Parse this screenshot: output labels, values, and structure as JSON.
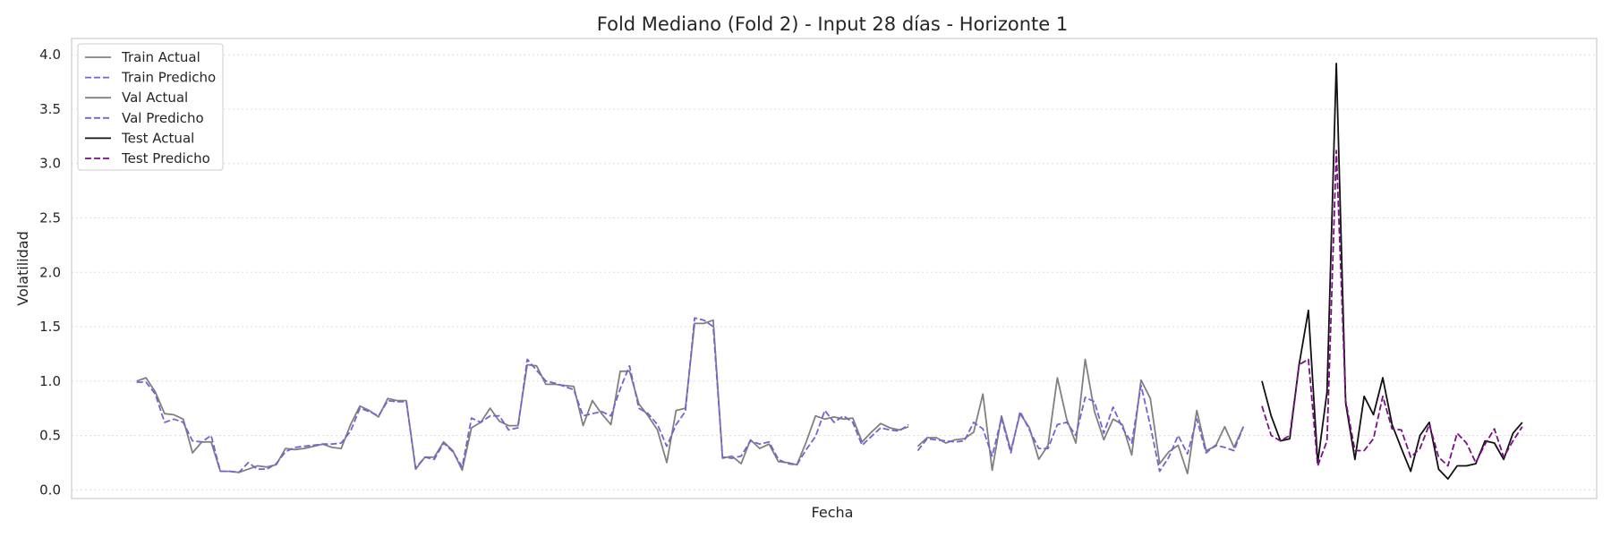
{
  "chart_data": {
    "type": "line",
    "title": "Fold Mediano (Fold 2) - Input 28 días - Horizonte 1",
    "xlabel": "Fecha",
    "ylabel": "Volatilidad",
    "ylim": [
      -0.08,
      4.15
    ],
    "yticks": [
      0.0,
      0.5,
      1.0,
      1.5,
      2.0,
      2.5,
      3.0,
      3.5,
      4.0
    ],
    "ytick_labels": [
      "0.0",
      "0.5",
      "1.0",
      "1.5",
      "2.0",
      "2.5",
      "3.0",
      "3.5",
      "4.0"
    ],
    "x_range": [
      0,
      164
    ],
    "grid": "y",
    "legend_position": "top-left",
    "series": [
      {
        "name": "Train Actual",
        "color": "#808080",
        "dash": "solid",
        "x_start": 7,
        "values": [
          1.0,
          1.03,
          0.9,
          0.7,
          0.69,
          0.65,
          0.34,
          0.44,
          0.44,
          0.17,
          0.17,
          0.16,
          0.19,
          0.22,
          0.21,
          0.23,
          0.38,
          0.37,
          0.38,
          0.4,
          0.42,
          0.39,
          0.38,
          0.6,
          0.77,
          0.73,
          0.67,
          0.84,
          0.82,
          0.82,
          0.19,
          0.3,
          0.3,
          0.44,
          0.36,
          0.18,
          0.57,
          0.62,
          0.75,
          0.63,
          0.59,
          0.59,
          1.15,
          1.14,
          0.97,
          0.97,
          0.96,
          0.95,
          0.59,
          0.82,
          0.7,
          0.6,
          1.09,
          1.09,
          0.79,
          0.68,
          0.55,
          0.25,
          0.73,
          0.75,
          1.53,
          1.53,
          1.56,
          0.29,
          0.31,
          0.24,
          0.46,
          0.38,
          0.42,
          0.26,
          0.25,
          0.23,
          0.44,
          0.68,
          0.65,
          0.67,
          0.65,
          0.66,
          0.44,
          0.53,
          0.61,
          0.57,
          0.55,
          0.58
        ]
      },
      {
        "name": "Train Predicho",
        "color": "#7a5fd6",
        "dash": "dashed",
        "x_start": 7,
        "values": [
          0.99,
          0.99,
          0.88,
          0.62,
          0.65,
          0.62,
          0.45,
          0.44,
          0.5,
          0.17,
          0.17,
          0.16,
          0.25,
          0.19,
          0.19,
          0.24,
          0.35,
          0.39,
          0.4,
          0.41,
          0.42,
          0.42,
          0.43,
          0.54,
          0.75,
          0.72,
          0.68,
          0.82,
          0.81,
          0.81,
          0.2,
          0.3,
          0.28,
          0.43,
          0.35,
          0.21,
          0.66,
          0.62,
          0.68,
          0.68,
          0.55,
          0.57,
          1.2,
          1.1,
          1.0,
          0.98,
          0.95,
          0.92,
          0.68,
          0.7,
          0.72,
          0.68,
          0.93,
          1.14,
          0.75,
          0.7,
          0.6,
          0.4,
          0.6,
          0.72,
          1.58,
          1.56,
          1.5,
          0.3,
          0.29,
          0.31,
          0.45,
          0.42,
          0.44,
          0.28,
          0.24,
          0.23,
          0.37,
          0.49,
          0.73,
          0.62,
          0.68,
          0.62,
          0.41,
          0.49,
          0.57,
          0.55,
          0.54,
          0.6
        ]
      },
      {
        "name": "Val Actual",
        "color": "#808080",
        "dash": "solid",
        "x_start": 91,
        "values": [
          0.4,
          0.48,
          0.48,
          0.43,
          0.46,
          0.47,
          0.53,
          0.88,
          0.18,
          0.68,
          0.36,
          0.7,
          0.57,
          0.28,
          0.41,
          1.03,
          0.65,
          0.43,
          1.2,
          0.72,
          0.46,
          0.65,
          0.6,
          0.32,
          1.01,
          0.84,
          0.24,
          0.35,
          0.41,
          0.15,
          0.73,
          0.36,
          0.4,
          0.58,
          0.39,
          0.58
        ]
      },
      {
        "name": "Val Predicho",
        "color": "#7a5fd6",
        "dash": "dashed",
        "x_start": 91,
        "values": [
          0.36,
          0.47,
          0.46,
          0.45,
          0.44,
          0.45,
          0.62,
          0.56,
          0.31,
          0.66,
          0.34,
          0.72,
          0.55,
          0.38,
          0.38,
          0.6,
          0.62,
          0.5,
          0.85,
          0.81,
          0.52,
          0.76,
          0.57,
          0.43,
          0.96,
          0.59,
          0.17,
          0.3,
          0.5,
          0.33,
          0.65,
          0.34,
          0.41,
          0.39,
          0.36,
          0.58
        ]
      },
      {
        "name": "Test Actual",
        "color": "#111111",
        "dash": "solid",
        "x_start": 128,
        "values": [
          1.0,
          0.68,
          0.45,
          0.47,
          1.15,
          1.65,
          0.25,
          0.9,
          3.92,
          0.8,
          0.28,
          0.86,
          0.69,
          1.03,
          0.6,
          0.38,
          0.17,
          0.5,
          0.62,
          0.19,
          0.1,
          0.22,
          0.22,
          0.24,
          0.45,
          0.43,
          0.28,
          0.52,
          0.62
        ]
      },
      {
        "name": "Test Predicho",
        "color": "#7a0f86",
        "dash": "dashed",
        "x_start": 128,
        "values": [
          0.77,
          0.5,
          0.45,
          0.5,
          1.15,
          1.2,
          0.22,
          0.45,
          3.12,
          0.82,
          0.36,
          0.36,
          0.47,
          0.86,
          0.56,
          0.55,
          0.3,
          0.38,
          0.6,
          0.3,
          0.22,
          0.52,
          0.43,
          0.25,
          0.42,
          0.56,
          0.3,
          0.45,
          0.58
        ]
      }
    ]
  }
}
